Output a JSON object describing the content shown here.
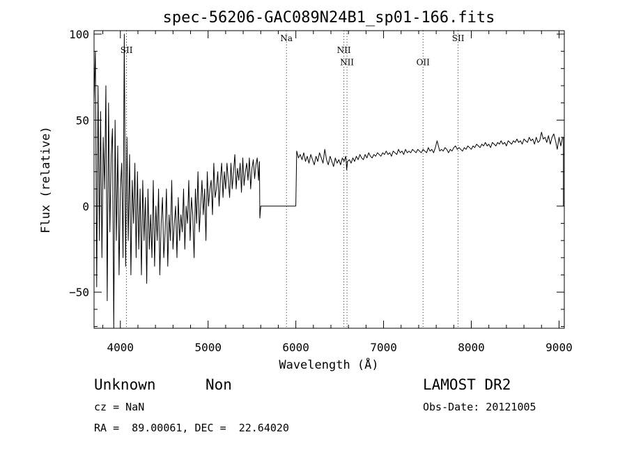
{
  "chart_data": {
    "type": "line",
    "title": "spec-56206-GAC089N24B1_sp01-166.fits",
    "xlabel": "Wavelength (Å)",
    "ylabel": "Flux (relative)",
    "xlim": [
      3700,
      9060
    ],
    "ylim": [
      -71,
      102
    ],
    "xticks": [
      4000,
      5000,
      6000,
      7000,
      8000,
      9000
    ],
    "yticks": [
      -50,
      0,
      50,
      100
    ],
    "series": [
      {
        "segments": [
          {
            "x": [
              3700,
              3715,
              3730,
              3745,
              3760,
              3775,
              3790,
              3805,
              3820,
              3835,
              3850,
              3865,
              3880,
              3895,
              3910,
              3925,
              3940,
              3955,
              3970,
              3985,
              4000,
              4015,
              4030,
              4045,
              4060,
              4075,
              4090,
              4105,
              4120,
              4135,
              4150,
              4165,
              4180,
              4195,
              4210,
              4225,
              4240,
              4255,
              4270,
              4285,
              4300,
              4315,
              4330,
              4345,
              4360,
              4375,
              4390,
              4405,
              4420,
              4435,
              4450,
              4465,
              4480,
              4495,
              4510,
              4525,
              4540,
              4555,
              4570,
              4585,
              4600,
              4615,
              4630,
              4645,
              4660,
              4675,
              4690,
              4705,
              4720,
              4735,
              4750,
              4765,
              4780,
              4795,
              4810,
              4825,
              4840,
              4855,
              4870,
              4885,
              4900,
              4915,
              4930,
              4945,
              4960,
              4975,
              4990,
              5005,
              5020,
              5035,
              5050,
              5065,
              5080,
              5095,
              5110,
              5125,
              5140,
              5155,
              5170,
              5185,
              5200,
              5215,
              5230,
              5245,
              5260,
              5275,
              5290,
              5305,
              5320,
              5335,
              5350,
              5365,
              5380,
              5395,
              5410,
              5425,
              5440,
              5455,
              5470,
              5485,
              5500,
              5515,
              5530,
              5545,
              5560,
              5575,
              5585
            ],
            "y": [
              60,
              90,
              -47,
              70,
              -20,
              55,
              -30,
              40,
              10,
              70,
              -55,
              60,
              -15,
              30,
              45,
              -71,
              50,
              -20,
              35,
              -40,
              10,
              25,
              -30,
              100,
              -35,
              40,
              -20,
              30,
              -40,
              15,
              -10,
              25,
              -30,
              20,
              -25,
              10,
              -40,
              15,
              -20,
              5,
              -45,
              10,
              -25,
              -5,
              -30,
              15,
              -35,
              0,
              -20,
              10,
              -40,
              -10,
              5,
              -30,
              -15,
              10,
              -35,
              -5,
              -20,
              15,
              -25,
              -10,
              0,
              -30,
              5,
              -20,
              -5,
              -15,
              10,
              -25,
              0,
              -10,
              15,
              -20,
              5,
              -5,
              -30,
              10,
              -10,
              20,
              -15,
              0,
              15,
              -5,
              10,
              -20,
              20,
              0,
              10,
              15,
              -5,
              25,
              5,
              10,
              20,
              0,
              15,
              25,
              5,
              20,
              10,
              25,
              15,
              5,
              25,
              10,
              20,
              30,
              10,
              22,
              15,
              25,
              8,
              28,
              12,
              20,
              25,
              15,
              28,
              10,
              22,
              27,
              16,
              24,
              28,
              15,
              26
            ]
          },
          {
            "x": [
              5585,
              5590,
              5600,
              5990,
              6000
            ],
            "y": [
              26,
              -7,
              0,
              0,
              0
            ]
          },
          {
            "x": [
              6000,
              6010,
              6030,
              6050,
              6070,
              6090,
              6110,
              6130,
              6150,
              6170,
              6190,
              6210,
              6230,
              6250,
              6270,
              6290,
              6310,
              6330,
              6350,
              6370,
              6390,
              6410,
              6430,
              6450,
              6470,
              6490,
              6510,
              6530,
              6550,
              6570,
              6580,
              6590,
              6610,
              6630,
              6650,
              6670,
              6690,
              6710,
              6730,
              6750,
              6770,
              6790,
              6810,
              6830,
              6850,
              6870,
              6890,
              6910,
              6930,
              6950,
              6970,
              6990,
              7010,
              7030,
              7050,
              7070,
              7090,
              7110,
              7130,
              7150,
              7170,
              7190,
              7210,
              7230,
              7250,
              7270,
              7290,
              7310,
              7330,
              7350,
              7370,
              7390,
              7410,
              7430,
              7450,
              7470,
              7490,
              7510,
              7530,
              7550,
              7570,
              7590,
              7610,
              7625,
              7640,
              7660,
              7680,
              7700,
              7720,
              7740,
              7760,
              7780,
              7800,
              7820,
              7840,
              7860,
              7880,
              7900,
              7920,
              7940,
              7960,
              7980,
              8000,
              8020,
              8040,
              8060,
              8080,
              8100,
              8120,
              8140,
              8160,
              8180,
              8200,
              8220,
              8240,
              8260,
              8280,
              8300,
              8320,
              8340,
              8360,
              8380,
              8400,
              8420,
              8440,
              8460,
              8480,
              8500,
              8520,
              8540,
              8560,
              8580,
              8600,
              8620,
              8640,
              8660,
              8680,
              8700,
              8720,
              8740,
              8760,
              8780,
              8800,
              8820,
              8840,
              8860,
              8880,
              8900,
              8920,
              8940,
              8960,
              8980,
              9000,
              9020,
              9040,
              9050
            ],
            "y": [
              0,
              32,
              28,
              30,
              27,
              31,
              26,
              29,
              25,
              30,
              27,
              24,
              29,
              26,
              31,
              28,
              25,
              33,
              27,
              24,
              29,
              26,
              23,
              28,
              25,
              27,
              24,
              28,
              26,
              29,
              21,
              26,
              27,
              25,
              28,
              26,
              29,
              27,
              30,
              28,
              27,
              30,
              28,
              31,
              29,
              28,
              30,
              29,
              31,
              30,
              29,
              31,
              30,
              32,
              30,
              31,
              29,
              32,
              31,
              30,
              33,
              31,
              32,
              30,
              33,
              31,
              32,
              31,
              33,
              32,
              31,
              33,
              32,
              31,
              33,
              32,
              31,
              34,
              32,
              33,
              31,
              34,
              38,
              35,
              32,
              33,
              32,
              34,
              33,
              31,
              33,
              32,
              34,
              35,
              33,
              34,
              33,
              32,
              34,
              33,
              35,
              34,
              33,
              35,
              34,
              36,
              35,
              34,
              36,
              35,
              37,
              35,
              36,
              34,
              37,
              36,
              35,
              37,
              36,
              38,
              36,
              37,
              35,
              38,
              37,
              36,
              38,
              37,
              39,
              37,
              38,
              36,
              39,
              38,
              37,
              40,
              38,
              39,
              36,
              40,
              37,
              38,
              43,
              39,
              40,
              37,
              41,
              36,
              40,
              42,
              38,
              33,
              40,
              35,
              40,
              40
            ]
          },
          {
            "x": [
              9050,
              9060
            ],
            "y": [
              40,
              40
            ]
          }
        ]
      }
    ],
    "lines": [
      {
        "label": "SII",
        "x": 4070,
        "label_y": 89
      },
      {
        "label": "Na",
        "x": 5893,
        "label_y": 96
      },
      {
        "label": "NII",
        "x": 6548,
        "label_y": 89
      },
      {
        "label": "NII",
        "x": 6583,
        "label_y": 82
      },
      {
        "label": "OII",
        "x": 7450,
        "label_y": 82
      },
      {
        "label": "SII",
        "x": 7850,
        "label_y": 96
      }
    ]
  },
  "info": {
    "class_text": "Unknown",
    "subclass_text": "Non",
    "survey": "LAMOST DR2",
    "cz": "cz = NaN",
    "obs_date": "Obs-Date: 20121005",
    "radec": "RA =  89.00061, DEC =  22.64020"
  }
}
